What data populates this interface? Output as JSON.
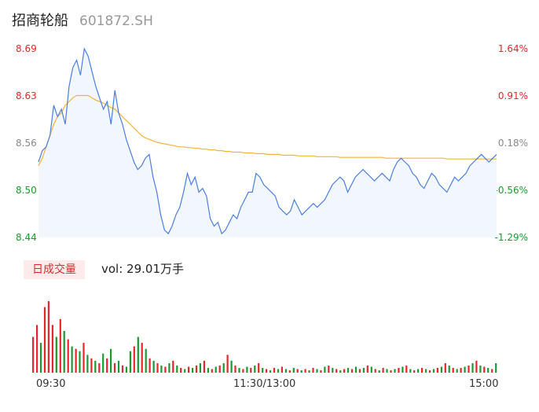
{
  "header": {
    "name": "招商轮船",
    "code": "601872.SH"
  },
  "price_axis": {
    "labels": [
      "8.69",
      "8.63",
      "8.56",
      "8.50",
      "8.44"
    ],
    "pct_labels": [
      "1.64%",
      "0.91%",
      "0.18%",
      "-0.56%",
      "-1.29%"
    ]
  },
  "volume_tab": {
    "label": "日成交量",
    "vol_text": "vol: 29.01万手"
  },
  "time_axis": {
    "labels": [
      "09:30",
      "11:30/13:00",
      "15:00"
    ]
  },
  "colors": {
    "up": "#e8252a",
    "down": "#1a9b2e",
    "flat": "#888888",
    "price_line": "#4a7fe0",
    "avg_line": "#f3b43a",
    "area_fill": "#f2f6fd"
  },
  "chart_data": [
    {
      "type": "line",
      "title": "",
      "ylim": [
        8.44,
        8.69
      ],
      "x_ticks": [
        "09:30",
        "11:30/13:00",
        "15:00"
      ],
      "series": [
        {
          "values": [
            8.54,
            8.555,
            8.56,
            8.575,
            8.615,
            8.6,
            8.61,
            8.59,
            8.64,
            8.665,
            8.675,
            8.655,
            8.69,
            8.68,
            8.66,
            8.64,
            8.625,
            8.61,
            8.62,
            8.59,
            8.635,
            8.605,
            8.59,
            8.57,
            8.555,
            8.54,
            8.53,
            8.535,
            8.545,
            8.55,
            8.52,
            8.5,
            8.47,
            8.45,
            8.445,
            8.455,
            8.47,
            8.48,
            8.5,
            8.525,
            8.51,
            8.52,
            8.5,
            8.505,
            8.495,
            8.465,
            8.455,
            8.46,
            8.445,
            8.45,
            8.46,
            8.47,
            8.465,
            8.48,
            8.49,
            8.5,
            8.5,
            8.525,
            8.52,
            8.51,
            8.505,
            8.5,
            8.495,
            8.48,
            8.475,
            8.47,
            8.475,
            8.49,
            8.48,
            8.47,
            8.475,
            8.48,
            8.485,
            8.48,
            8.485,
            8.49,
            8.5,
            8.51,
            8.515,
            8.52,
            8.515,
            8.5,
            8.51,
            8.52,
            8.525,
            8.53,
            8.525,
            8.52,
            8.515,
            8.52,
            8.525,
            8.52,
            8.515,
            8.53,
            8.54,
            8.545,
            8.54,
            8.535,
            8.525,
            8.52,
            8.51,
            8.505,
            8.515,
            8.525,
            8.52,
            8.51,
            8.505,
            8.5,
            8.51,
            8.52,
            8.515,
            8.52,
            8.525,
            8.535,
            8.54,
            8.545,
            8.55,
            8.545,
            8.54,
            8.545,
            8.55
          ],
          "color": "#4a7fe0"
        },
        {
          "values": [
            8.535,
            8.545,
            8.56,
            8.575,
            8.59,
            8.6,
            8.605,
            8.615,
            8.62,
            8.625,
            8.628,
            8.628,
            8.628,
            8.628,
            8.625,
            8.622,
            8.62,
            8.618,
            8.615,
            8.612,
            8.61,
            8.605,
            8.6,
            8.595,
            8.59,
            8.585,
            8.58,
            8.575,
            8.572,
            8.57,
            8.568,
            8.566,
            8.565,
            8.564,
            8.563,
            8.562,
            8.561,
            8.56,
            8.56,
            8.559,
            8.559,
            8.558,
            8.558,
            8.557,
            8.557,
            8.556,
            8.556,
            8.555,
            8.555,
            8.554,
            8.554,
            8.553,
            8.553,
            8.553,
            8.552,
            8.552,
            8.552,
            8.551,
            8.551,
            8.551,
            8.55,
            8.55,
            8.55,
            8.55,
            8.549,
            8.549,
            8.549,
            8.549,
            8.548,
            8.548,
            8.548,
            8.548,
            8.548,
            8.547,
            8.547,
            8.547,
            8.547,
            8.547,
            8.547,
            8.546,
            8.546,
            8.546,
            8.546,
            8.546,
            8.546,
            8.546,
            8.546,
            8.546,
            8.546,
            8.546,
            8.546,
            8.545,
            8.545,
            8.545,
            8.545,
            8.545,
            8.545,
            8.545,
            8.545,
            8.545,
            8.545,
            8.545,
            8.545,
            8.545,
            8.545,
            8.545,
            8.545,
            8.544,
            8.544,
            8.544,
            8.544,
            8.544,
            8.544,
            8.544,
            8.544,
            8.544,
            8.544,
            8.544,
            8.544,
            8.544,
            8.544
          ],
          "color": "#f3b43a"
        }
      ]
    },
    {
      "type": "bar",
      "title": "",
      "values": [
        30,
        40,
        25,
        55,
        60,
        40,
        30,
        45,
        35,
        28,
        22,
        20,
        18,
        25,
        15,
        12,
        10,
        8,
        16,
        12,
        20,
        8,
        10,
        6,
        5,
        18,
        22,
        30,
        25,
        20,
        12,
        10,
        8,
        6,
        5,
        8,
        10,
        6,
        4,
        3,
        5,
        4,
        6,
        8,
        10,
        4,
        3,
        5,
        6,
        8,
        15,
        10,
        6,
        4,
        3,
        5,
        4,
        6,
        8,
        4,
        3,
        2,
        4,
        3,
        5,
        3,
        2,
        4,
        3,
        2,
        3,
        2,
        4,
        3,
        2,
        5,
        6,
        4,
        3,
        2,
        3,
        4,
        3,
        5,
        3,
        4,
        6,
        5,
        3,
        2,
        4,
        3,
        2,
        3,
        4,
        5,
        6,
        3,
        2,
        3,
        4,
        3,
        2,
        3,
        4,
        5,
        8,
        6,
        4,
        3,
        4,
        5,
        6,
        8,
        10,
        6,
        5,
        4,
        3,
        8
      ],
      "colors": [
        "up",
        "up",
        "down",
        "up",
        "up",
        "up",
        "down",
        "up",
        "down",
        "up",
        "down",
        "up",
        "down",
        "up",
        "down",
        "up",
        "down",
        "up",
        "down",
        "up",
        "down",
        "up",
        "down",
        "up",
        "down",
        "down",
        "up",
        "down",
        "up",
        "down",
        "up",
        "down",
        "up",
        "down",
        "up",
        "down",
        "up",
        "down",
        "up",
        "down",
        "up",
        "down",
        "up",
        "down",
        "up",
        "down",
        "up",
        "down",
        "up",
        "down",
        "up",
        "down",
        "up",
        "down",
        "up",
        "down",
        "up",
        "down",
        "up",
        "down",
        "up",
        "down",
        "up",
        "down",
        "up",
        "down",
        "up",
        "down",
        "up",
        "down",
        "up",
        "down",
        "up",
        "down",
        "up",
        "down",
        "up",
        "down",
        "up",
        "down",
        "up",
        "down",
        "up",
        "down",
        "up",
        "down",
        "up",
        "down",
        "up",
        "down",
        "up",
        "down",
        "up",
        "down",
        "up",
        "down",
        "up",
        "down",
        "up",
        "down",
        "up",
        "down",
        "up",
        "down",
        "up",
        "down",
        "up",
        "down",
        "up",
        "down",
        "up",
        "down",
        "up",
        "down",
        "up",
        "down",
        "up",
        "down",
        "up",
        "down"
      ]
    }
  ]
}
